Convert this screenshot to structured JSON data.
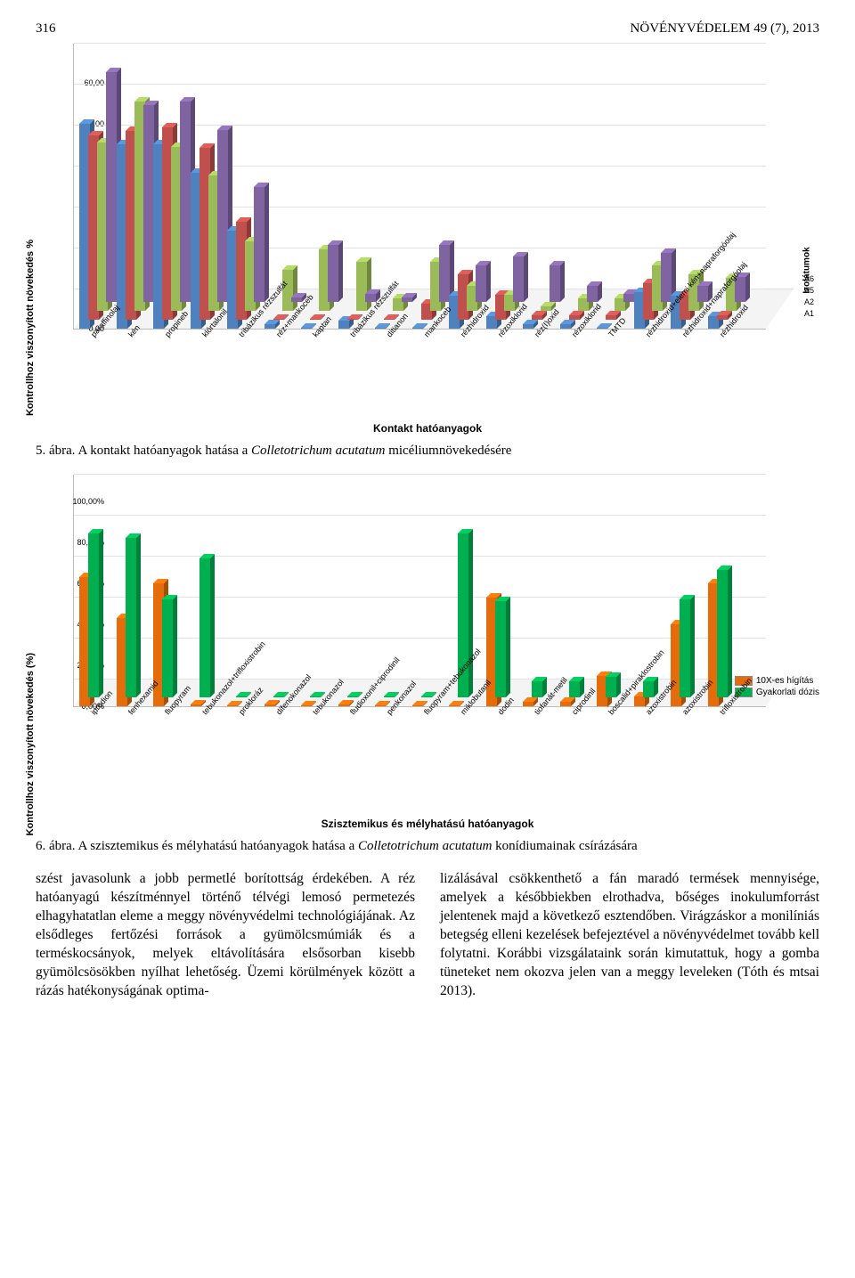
{
  "header": {
    "page_num": "316",
    "journal": "NÖVÉNYVÉDELEM 49 (7), 2013"
  },
  "fig5": {
    "type": "bar-3d-grouped",
    "ylabel": "Kontrollhoz viszonyított növekedés %",
    "xtitle": "Kontakt hatóanyagok",
    "depth_axis_label": "Izolátumok",
    "ylim": [
      0,
      60
    ],
    "ytick_step": 10,
    "ytick_fmt": "0,00",
    "series": [
      {
        "name": "A1",
        "color": "#4e81bd"
      },
      {
        "name": "A2",
        "color": "#c0504d"
      },
      {
        "name": "A5",
        "color": "#9bbb59"
      },
      {
        "name": "A6",
        "color": "#8064a2"
      }
    ],
    "categories": [
      "paraffinolaj",
      "kén",
      "propineb",
      "klórtalonil",
      "tribázikus rézszulfát",
      "réz+mankoceb",
      "kaptan",
      "tribázikus rézszulfát",
      "ditianon",
      "mankoceb",
      "rézhidroxid",
      "rézoxiklorid",
      "réz(I)oxid",
      "rézoxiklorid",
      "TMTD",
      "rézhidroxid+elemi kén+napraforgóolaj",
      "rézhidroxid+napraforgóolaj",
      "rézhidroxid"
    ],
    "values": [
      [
        50,
        45,
        41,
        56
      ],
      [
        45,
        46,
        51,
        48
      ],
      [
        45,
        47,
        40,
        49
      ],
      [
        38,
        42,
        33,
        42
      ],
      [
        24,
        24,
        17,
        28
      ],
      [
        1,
        0,
        10,
        1
      ],
      [
        0,
        0,
        15,
        14
      ],
      [
        2,
        0,
        12,
        2
      ],
      [
        0,
        0,
        3,
        1
      ],
      [
        0,
        4,
        12,
        14
      ],
      [
        8,
        11,
        6,
        9
      ],
      [
        3,
        6,
        4,
        11
      ],
      [
        1,
        1,
        1,
        9
      ],
      [
        1,
        1,
        3,
        4
      ],
      [
        0,
        1,
        3,
        2
      ],
      [
        9,
        9,
        11,
        12
      ],
      [
        8,
        6,
        9,
        4
      ],
      [
        3,
        1,
        8,
        6
      ]
    ]
  },
  "caption5": {
    "num": "5. ábra.",
    "text_a": "A kontakt hatóanyagok hatása a ",
    "ital": "Colletotrichum acutatum",
    "text_b": " micéliumnövekedésére"
  },
  "fig6": {
    "type": "bar-3d-grouped",
    "ylabel": "Kontrollhoz viszonyított növekedés (%)",
    "xtitle": "Szisztemikus és mélyhatású hatóanyagok",
    "ylim": [
      0,
      100
    ],
    "ytick_step": 20,
    "ytick_fmt": "0,00%",
    "series": [
      {
        "name": "10X-es hígítás",
        "color": "#e46c0a"
      },
      {
        "name": "Gyakorlati dózis",
        "color": "#00b050"
      }
    ],
    "categories": [
      "iprodion",
      "fenhexamid",
      "fluopyram",
      "tebukonazol+trifloxistrobin",
      "prokloráz",
      "difenokonazol",
      "tebukonazol",
      "fludioxonil+ciprodinil",
      "penkonazol",
      "fluopyram+tebukonazol",
      "miklobutanil",
      "dodin",
      "tiofanát-metil",
      "ciprodinil",
      "boscalid+piraklostrobin",
      "azoxistrobin",
      "azoxistrobin",
      "trifloxistrobin"
    ],
    "values": [
      [
        63,
        80
      ],
      [
        43,
        78
      ],
      [
        60,
        48
      ],
      [
        1,
        68
      ],
      [
        0,
        0
      ],
      [
        1,
        0
      ],
      [
        0,
        0
      ],
      [
        1,
        0
      ],
      [
        0,
        0
      ],
      [
        0,
        0
      ],
      [
        0,
        80
      ],
      [
        53,
        47
      ],
      [
        2,
        8
      ],
      [
        2,
        8
      ],
      [
        15,
        10
      ],
      [
        5,
        8
      ],
      [
        40,
        48
      ],
      [
        60,
        62
      ]
    ]
  },
  "caption6": {
    "num": "6. ábra.",
    "text_a": "A szisztemikus és mélyhatású hatóanyagok hatása a ",
    "ital": "Colletotrichum acutatum",
    "text_b": " konídiumainak csírázására"
  },
  "body": {
    "left": "szést javasolunk a jobb permetlé borítottság érdekében. A réz hatóanyagú készítménnyel történő télvégi lemosó permetezés elhagyhatatlan eleme a meggy növényvédelmi technológiájának. Az elsődleges fertőzési források a gyümölcsmúmiák és a terméskocsányok, melyek eltávolítására elsősorban kisebb gyümölcsösökben nyílhat lehetőség. Üzemi körülmények között a rázás hatékonyságának optima-",
    "right": "lizálásával csökkenthető a fán maradó termések mennyisége, amelyek a későbbiekben elrothadva, bőséges inokulumforrást jelentenek majd a következő esztendőben. Virágzáskor a monilíniás betegség elleni kezelések befejeztével a növényvédelmet tovább kell folytatni. Korábbi vizsgálataink során kimutattuk, hogy a gomba tüneteket nem okozva jelen van a meggy leveleken (Tóth és mtsai 2013)."
  }
}
